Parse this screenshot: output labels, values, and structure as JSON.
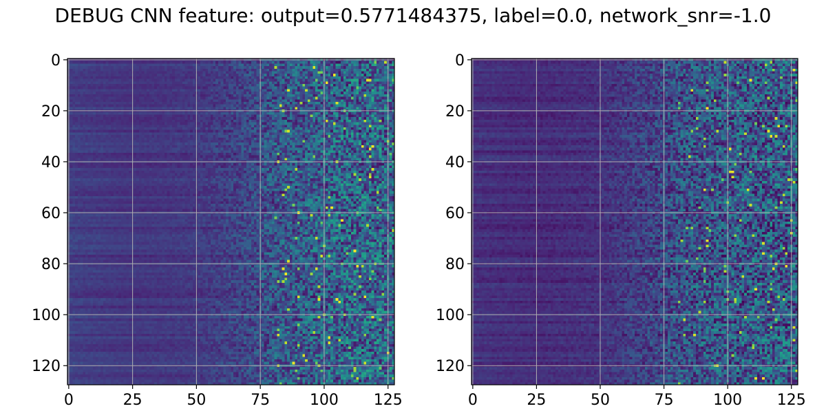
{
  "title": "DEBUG CNN feature: output=0.5771484375, label=0.0, network_snr=-1.0",
  "colors": {
    "colormap": "viridis",
    "grid": "#b0b0b0",
    "axis": "#000000",
    "text": "#000000",
    "background": "#ffffff"
  },
  "chart_data": [
    {
      "type": "heatmap",
      "panel": "left",
      "title": "",
      "xlabel": "",
      "ylabel": "",
      "rows": 128,
      "cols": 128,
      "xlim": [
        -0.5,
        127.5
      ],
      "ylim": [
        127.5,
        -0.5
      ],
      "y_inverted": true,
      "grid": true,
      "xticks": [
        0,
        25,
        50,
        75,
        100,
        125
      ],
      "yticks": [
        0,
        20,
        40,
        60,
        80,
        100,
        120
      ],
      "value_range": [
        0.0,
        1.0
      ],
      "column_profile": {
        "description_values": "approximate mean intensity (0-1 colormap scale) by column index",
        "x": [
          0,
          25,
          50,
          60,
          70,
          75,
          85,
          100,
          110,
          127
        ],
        "mean": [
          0.18,
          0.15,
          0.16,
          0.18,
          0.21,
          0.24,
          0.27,
          0.3,
          0.32,
          0.33
        ],
        "noise": [
          0.03,
          0.02,
          0.04,
          0.08,
          0.12,
          0.16,
          0.2,
          0.24,
          0.27,
          0.28
        ]
      }
    },
    {
      "type": "heatmap",
      "panel": "right",
      "title": "",
      "xlabel": "",
      "ylabel": "",
      "rows": 128,
      "cols": 128,
      "xlim": [
        -0.5,
        127.5
      ],
      "ylim": [
        127.5,
        -0.5
      ],
      "y_inverted": true,
      "grid": true,
      "xticks": [
        0,
        25,
        50,
        75,
        100,
        125
      ],
      "yticks": [
        0,
        20,
        40,
        60,
        80,
        100,
        120
      ],
      "value_range": [
        0.0,
        1.0
      ],
      "column_profile": {
        "description_values": "approximate mean intensity (0-1 colormap scale) by column index",
        "x": [
          0,
          25,
          50,
          60,
          70,
          75,
          85,
          100,
          110,
          127
        ],
        "mean": [
          0.14,
          0.12,
          0.14,
          0.17,
          0.2,
          0.22,
          0.25,
          0.27,
          0.28,
          0.29
        ],
        "noise": [
          0.03,
          0.03,
          0.05,
          0.09,
          0.13,
          0.17,
          0.21,
          0.24,
          0.26,
          0.27
        ]
      }
    }
  ]
}
